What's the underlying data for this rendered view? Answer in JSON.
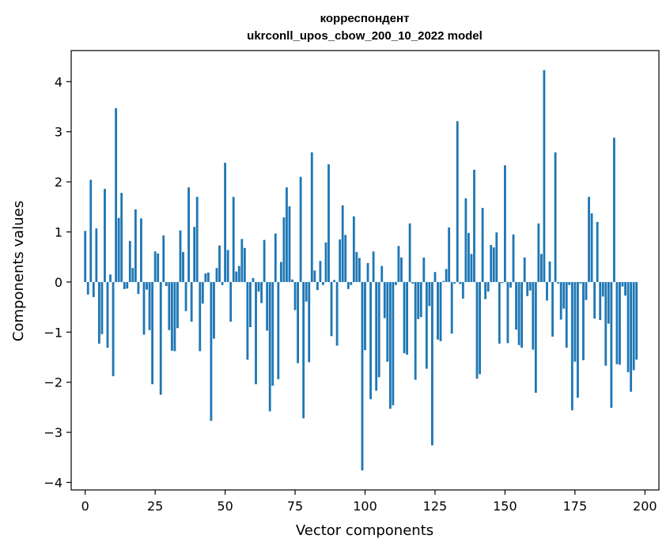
{
  "chart_data": {
    "type": "bar",
    "title_line1": "корреспондент",
    "title_line2": "ukrconll_upos_cbow_200_10_2022 model",
    "xlabel": "Vector components",
    "ylabel": "Components values",
    "xlim": [
      -5,
      205
    ],
    "ylim": [
      -4.15,
      4.62
    ],
    "xticks": [
      0,
      25,
      50,
      75,
      100,
      125,
      150,
      175,
      200
    ],
    "yticks": [
      -4,
      -3,
      -2,
      -1,
      0,
      1,
      2,
      3,
      4
    ],
    "grid": false,
    "bar_color": "#1f77b4",
    "values": [
      1.02,
      -0.25,
      2.04,
      -0.3,
      1.07,
      -1.23,
      -1.04,
      1.86,
      -1.31,
      0.15,
      -1.88,
      3.47,
      1.28,
      1.78,
      -0.14,
      -0.13,
      0.82,
      0.28,
      1.45,
      -0.24,
      1.27,
      -1.05,
      -0.15,
      -0.96,
      -2.04,
      0.61,
      0.57,
      -2.25,
      0.93,
      -0.08,
      -0.96,
      -1.37,
      -1.38,
      -0.92,
      1.03,
      0.6,
      -0.58,
      1.89,
      -0.79,
      1.1,
      1.7,
      -1.38,
      -0.43,
      0.17,
      0.19,
      -2.77,
      -1.13,
      0.28,
      0.73,
      -0.06,
      2.38,
      0.64,
      -0.79,
      1.7,
      0.21,
      0.32,
      0.86,
      0.68,
      -1.55,
      -0.9,
      0.08,
      -2.04,
      -0.19,
      -0.42,
      0.84,
      -0.97,
      -2.58,
      -2.07,
      0.97,
      -1.94,
      0.4,
      1.29,
      1.89,
      1.51,
      0.05,
      -0.56,
      -1.62,
      2.1,
      -2.72,
      -0.39,
      -1.6,
      2.59,
      0.23,
      -0.16,
      0.42,
      -0.06,
      0.79,
      2.35,
      -1.08,
      0.04,
      -1.27,
      0.85,
      1.53,
      0.94,
      -0.14,
      -0.06,
      1.31,
      0.6,
      0.48,
      -3.76,
      -1.36,
      0.38,
      -2.34,
      0.61,
      -2.17,
      -1.9,
      0.32,
      -0.72,
      -1.59,
      -2.53,
      -2.46,
      -0.06,
      0.72,
      0.49,
      -1.42,
      -1.45,
      1.17,
      -0.03,
      -1.95,
      -0.74,
      -0.7,
      0.49,
      -1.73,
      -0.48,
      -3.26,
      0.2,
      -1.15,
      -1.18,
      0.02,
      0.26,
      1.09,
      -1.03,
      -0.03,
      3.21,
      -0.04,
      -0.33,
      1.67,
      0.98,
      0.56,
      2.24,
      -1.93,
      -1.84,
      1.48,
      -0.34,
      -0.19,
      0.74,
      0.69,
      0.99,
      -1.23,
      -0.02,
      2.33,
      -1.22,
      -0.11,
      0.95,
      -0.95,
      -1.26,
      -1.31,
      0.49,
      -0.28,
      -0.17,
      -1.35,
      -2.21,
      1.17,
      0.56,
      4.23,
      -0.37,
      0.41,
      -1.09,
      2.59,
      -0.03,
      -0.75,
      -0.53,
      -1.31,
      -0.06,
      -2.56,
      -1.59,
      -2.31,
      -0.03,
      -1.56,
      -0.36,
      1.7,
      1.37,
      -0.73,
      1.2,
      -0.76,
      -0.29,
      -1.67,
      -0.83,
      -2.51,
      2.88,
      -1.64,
      -1.65,
      -0.09,
      -0.27,
      -1.8,
      -2.19,
      -1.76,
      -1.55
    ]
  }
}
